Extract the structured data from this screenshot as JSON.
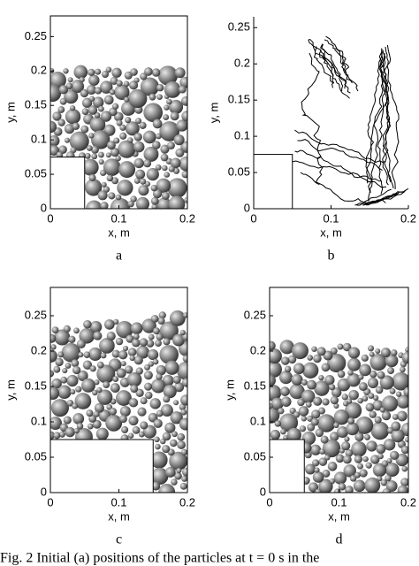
{
  "chart_data": [
    {
      "type": "particles",
      "xlabel": "x, m",
      "ylabel": "y, m",
      "panel": "a",
      "xlim": [
        0,
        0.2
      ],
      "ylim": [
        0,
        0.28
      ],
      "xticks": [
        0,
        0.1,
        0.2
      ],
      "yticks": [
        0,
        0.05,
        0.1,
        0.15,
        0.2,
        0.25
      ],
      "obstacle": {
        "width": 0.05,
        "height": 0.075
      },
      "bed_top": [
        0.205,
        0.205
      ]
    },
    {
      "type": "trajectories",
      "xlabel": "x, m",
      "ylabel": "y, m",
      "panel": "b",
      "xlim": [
        0,
        0.2
      ],
      "ylim": [
        0,
        0.265
      ],
      "xticks": [
        0,
        0.1,
        0.2
      ],
      "yticks": [
        0,
        0.05,
        0.1,
        0.15,
        0.2,
        0.25
      ],
      "obstacle": {
        "width": 0.05,
        "height": 0.075
      }
    },
    {
      "type": "particles",
      "xlabel": "x, m",
      "ylabel": "y, m",
      "panel": "c",
      "xlim": [
        0,
        0.2
      ],
      "ylim": [
        0,
        0.29
      ],
      "xticks": [
        0,
        0.1,
        0.2
      ],
      "yticks": [
        0,
        0.05,
        0.1,
        0.15,
        0.2,
        0.25
      ],
      "obstacle": {
        "width": 0.15,
        "height": 0.075
      },
      "bed_top": [
        0.235,
        0.26
      ]
    },
    {
      "type": "particles",
      "xlabel": "x, m",
      "ylabel": "y, m",
      "panel": "d",
      "xlim": [
        0,
        0.2
      ],
      "ylim": [
        0,
        0.29
      ],
      "xticks": [
        0,
        0.1,
        0.2
      ],
      "yticks": [
        0,
        0.05,
        0.1,
        0.15,
        0.2,
        0.25
      ],
      "obstacle": {
        "width": 0.05,
        "height": 0.075
      },
      "bed_top": [
        0.215,
        0.205
      ]
    }
  ],
  "caption": "Fig. 2 Initial (a) positions of the particles at t = 0 s in the"
}
